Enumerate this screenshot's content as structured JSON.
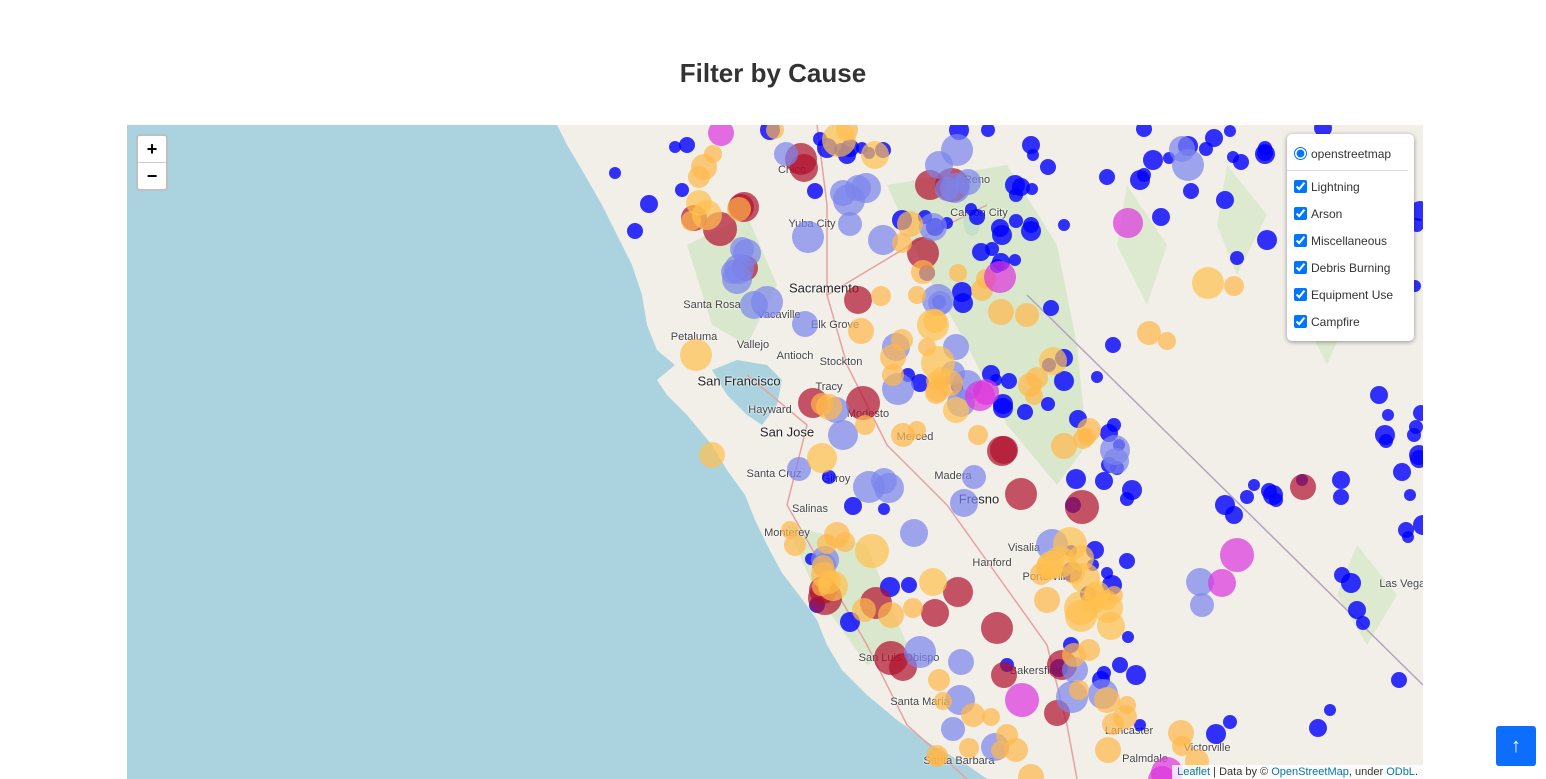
{
  "title": "Filter by Cause",
  "map": {
    "zoom_in": "+",
    "zoom_out": "−",
    "base_layer": "openstreetmap",
    "overlays": [
      {
        "label": "Lightning",
        "checked": true
      },
      {
        "label": "Arson",
        "checked": true
      },
      {
        "label": "Miscellaneous",
        "checked": true
      },
      {
        "label": "Debris Burning",
        "checked": true
      },
      {
        "label": "Equipment Use",
        "checked": true
      },
      {
        "label": "Campfire",
        "checked": true
      }
    ],
    "attribution": {
      "leaflet": "Leaflet",
      "sep": " | Data by © ",
      "osm": "OpenStreetMap",
      "under": ", under ",
      "odbl": "ODbL",
      "end": "."
    },
    "cities": [
      "Chico",
      "Yuba City",
      "Reno",
      "Carson City",
      "Sacramento",
      "Santa Rosa",
      "Vacaville",
      "Elk Grove",
      "Petaluma",
      "Vallejo",
      "Antioch",
      "Stockton",
      "San Francisco",
      "Tracy",
      "Hayward",
      "Modesto",
      "San Jose",
      "Merced",
      "Santa Cruz",
      "Gilroy",
      "Madera",
      "Fresno",
      "Salinas",
      "Monterey",
      "Visalia",
      "Hanford",
      "Porterville",
      "San Luis Obispo",
      "Bakersfield",
      "Santa Maria",
      "Lancaster",
      "Victorville",
      "Santa Barbara",
      "Palmdale",
      "Las Vegas"
    ],
    "colors": {
      "lightning": "#0000ff",
      "arson": "#b0102c",
      "miscellaneous": "#7b84ec",
      "debris_burning": "#ffb84a",
      "equipment_use": "#ffc04d",
      "campfire": "#dd33dd",
      "water": "#aad3df",
      "land": "#f2efe9"
    }
  },
  "back_to_top": "↑"
}
